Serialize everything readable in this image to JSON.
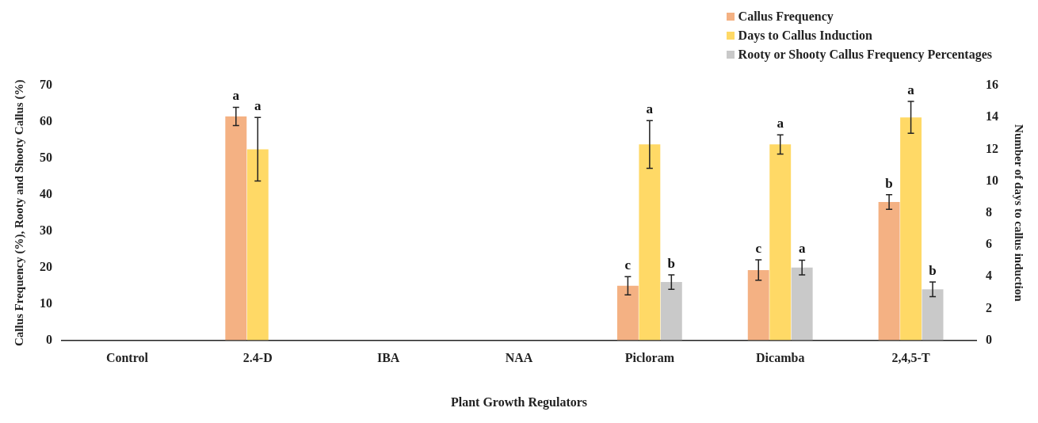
{
  "chart_data": {
    "type": "bar",
    "xlabel": "Plant Growth Regulators",
    "ylabel": "Callus Frequency (%), Rooty and Shooty Callus (%)",
    "y2label": "Number of days to callus induction",
    "categories": [
      "Control",
      "2.4-D",
      "IBA",
      "NAA",
      "Picloram",
      "Dicamba",
      "2,4,5-T"
    ],
    "series": [
      {
        "name": "Callus Frequency",
        "color": "#f4b183",
        "values": [
          0,
          61.5,
          0,
          0,
          15,
          19.3,
          38
        ],
        "errors": [
          null,
          2.5,
          null,
          null,
          2.5,
          2.8,
          2
        ],
        "value_labels": [
          null,
          "a",
          null,
          null,
          "c",
          "c",
          "b"
        ]
      },
      {
        "name": "Days to Callus Induction",
        "color": "#ffd966",
        "axis": "y2",
        "values": [
          0,
          12,
          0,
          0,
          12.3,
          12.3,
          14
        ],
        "errors": [
          null,
          2,
          null,
          null,
          1.5,
          0.6,
          1
        ],
        "value_labels": [
          null,
          "a",
          null,
          null,
          "a",
          "a",
          "a"
        ]
      },
      {
        "name": "Rooty or Shooty Callus Frequency Percentages",
        "color": "#c9c9c9",
        "values": [
          0,
          0,
          0,
          0,
          16,
          20,
          14
        ],
        "errors": [
          null,
          null,
          null,
          null,
          2,
          2,
          2
        ],
        "value_labels": [
          null,
          null,
          null,
          null,
          "b",
          "a",
          "b"
        ]
      }
    ],
    "ylim": [
      0,
      70
    ],
    "yticks": [
      0,
      10,
      20,
      30,
      40,
      50,
      60,
      70
    ],
    "y2lim": [
      0,
      16
    ],
    "y2ticks": [
      0,
      2,
      4,
      6,
      8,
      10,
      12,
      14,
      16
    ],
    "grid": false,
    "legend": "top right"
  }
}
